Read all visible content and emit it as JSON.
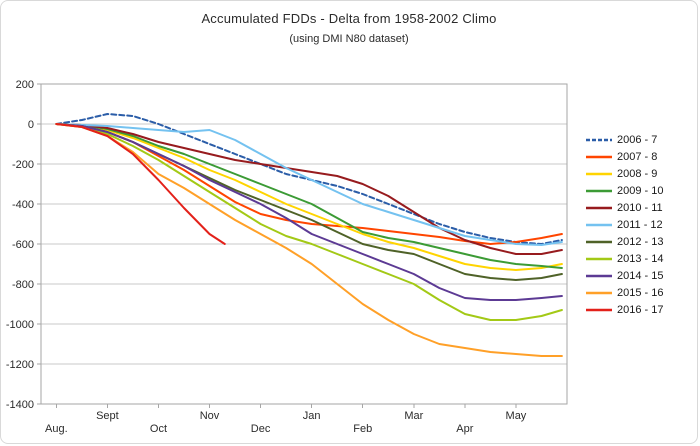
{
  "chart_data": {
    "type": "line",
    "title": "Accumulated FDDs - Delta from 1958-2002 Climo",
    "subtitle": "(using DMI N80 dataset)",
    "xlabel": "",
    "ylabel": "",
    "grid": "horizontal",
    "legend_position": "right",
    "xlim": [
      -0.3,
      10.0
    ],
    "ylim": [
      -1400,
      200
    ],
    "y_ticks": [
      200,
      0,
      -200,
      -400,
      -600,
      -800,
      -1000,
      -1200,
      -1400
    ],
    "x_tick_labels": [
      "Aug.",
      "Sept",
      "Oct",
      "Nov",
      "Dec",
      "Jan",
      "Feb",
      "Mar",
      "Apr",
      "May"
    ],
    "x_tick_positions": [
      0,
      1,
      2,
      3,
      4,
      5,
      6,
      7,
      8,
      9
    ],
    "colors": {
      "grid": "#c9c9c9",
      "plot_border": "#a6a6a6",
      "axis_text": "#2b2b2b"
    },
    "series": [
      {
        "name": "2006 - 7",
        "color": "#2b5da8",
        "dash": true,
        "x": [
          0,
          0.5,
          1,
          1.5,
          2,
          2.5,
          3,
          3.5,
          4,
          4.5,
          5,
          5.5,
          6,
          6.5,
          7,
          7.5,
          8,
          8.5,
          9,
          9.5,
          9.9
        ],
        "y": [
          0,
          20,
          50,
          40,
          0,
          -50,
          -100,
          -150,
          -200,
          -250,
          -280,
          -310,
          -350,
          -400,
          -450,
          -500,
          -540,
          -570,
          -590,
          -600,
          -580
        ]
      },
      {
        "name": "2007 - 8",
        "color": "#ff4500",
        "dash": false,
        "x": [
          0,
          0.5,
          1,
          1.5,
          2,
          2.5,
          3,
          3.5,
          4,
          4.5,
          5,
          5.5,
          6,
          6.5,
          7,
          7.5,
          8,
          8.5,
          9,
          9.5,
          9.9
        ],
        "y": [
          0,
          -10,
          -40,
          -90,
          -160,
          -230,
          -310,
          -390,
          -450,
          -480,
          -500,
          -510,
          -520,
          -535,
          -550,
          -565,
          -585,
          -600,
          -590,
          -570,
          -550
        ]
      },
      {
        "name": "2008 - 9",
        "color": "#ffd400",
        "dash": false,
        "x": [
          0,
          0.5,
          1,
          1.5,
          2,
          2.5,
          3,
          3.5,
          4,
          4.5,
          5,
          5.5,
          6,
          6.5,
          7,
          7.5,
          8,
          8.5,
          9,
          9.5,
          9.9
        ],
        "y": [
          0,
          -10,
          -30,
          -70,
          -120,
          -170,
          -230,
          -280,
          -340,
          -400,
          -450,
          -500,
          -550,
          -590,
          -620,
          -660,
          -700,
          -720,
          -730,
          -720,
          -700
        ]
      },
      {
        "name": "2009 - 10",
        "color": "#3c9b35",
        "dash": false,
        "x": [
          0,
          0.5,
          1,
          1.5,
          2,
          2.5,
          3,
          3.5,
          4,
          4.5,
          5,
          5.5,
          6,
          6.5,
          7,
          7.5,
          8,
          8.5,
          9,
          9.5,
          9.9
        ],
        "y": [
          0,
          -5,
          -25,
          -60,
          -110,
          -150,
          -200,
          -250,
          -300,
          -350,
          -400,
          -470,
          -540,
          -570,
          -590,
          -620,
          -650,
          -680,
          -700,
          -710,
          -720
        ]
      },
      {
        "name": "2010 - 11",
        "color": "#971b1e",
        "dash": false,
        "x": [
          0,
          0.5,
          1,
          1.5,
          2,
          2.5,
          3,
          3.5,
          4,
          4.5,
          5,
          5.5,
          6,
          6.5,
          7,
          7.5,
          8,
          8.5,
          9,
          9.5,
          9.9
        ],
        "y": [
          0,
          -5,
          -20,
          -50,
          -90,
          -120,
          -150,
          -180,
          -200,
          -220,
          -240,
          -260,
          -300,
          -360,
          -440,
          -520,
          -580,
          -620,
          -650,
          -650,
          -630
        ]
      },
      {
        "name": "2011 - 12",
        "color": "#74c2f0",
        "dash": false,
        "x": [
          0,
          0.5,
          1,
          1.5,
          2,
          2.5,
          3,
          3.5,
          4,
          4.5,
          5,
          5.5,
          6,
          6.5,
          7,
          7.5,
          8,
          8.5,
          9,
          9.5,
          9.9
        ],
        "y": [
          0,
          -5,
          -10,
          -20,
          -30,
          -40,
          -30,
          -80,
          -150,
          -220,
          -280,
          -340,
          -400,
          -440,
          -480,
          -520,
          -560,
          -580,
          -600,
          -605,
          -590
        ]
      },
      {
        "name": "2012 - 13",
        "color": "#4f6228",
        "dash": false,
        "x": [
          0,
          0.5,
          1,
          1.5,
          2,
          2.5,
          3,
          3.5,
          4,
          4.5,
          5,
          5.5,
          6,
          6.5,
          7,
          7.5,
          8,
          8.5,
          9,
          9.5,
          9.9
        ],
        "y": [
          0,
          -10,
          -40,
          -90,
          -150,
          -210,
          -270,
          -330,
          -380,
          -430,
          -480,
          -540,
          -600,
          -630,
          -650,
          -700,
          -750,
          -770,
          -780,
          -770,
          -750
        ]
      },
      {
        "name": "2013 - 14",
        "color": "#a3c916",
        "dash": false,
        "x": [
          0,
          0.5,
          1,
          1.5,
          2,
          2.5,
          3,
          3.5,
          4,
          4.5,
          5,
          5.5,
          6,
          6.5,
          7,
          7.5,
          8,
          8.5,
          9,
          9.5,
          9.9
        ],
        "y": [
          0,
          -15,
          -50,
          -110,
          -180,
          -260,
          -340,
          -420,
          -500,
          -560,
          -600,
          -650,
          -700,
          -750,
          -800,
          -880,
          -950,
          -980,
          -980,
          -960,
          -930
        ]
      },
      {
        "name": "2014 - 15",
        "color": "#5c3a94",
        "dash": false,
        "x": [
          0,
          0.5,
          1,
          1.5,
          2,
          2.5,
          3,
          3.5,
          4,
          4.5,
          5,
          5.5,
          6,
          6.5,
          7,
          7.5,
          8,
          8.5,
          9,
          9.5,
          9.9
        ],
        "y": [
          0,
          -10,
          -40,
          -90,
          -150,
          -210,
          -280,
          -340,
          -400,
          -470,
          -550,
          -600,
          -650,
          -700,
          -750,
          -820,
          -870,
          -880,
          -880,
          -870,
          -860
        ]
      },
      {
        "name": "2015 - 16",
        "color": "#ffa028",
        "dash": false,
        "x": [
          0,
          0.5,
          1,
          1.5,
          2,
          2.5,
          3,
          3.5,
          4,
          4.5,
          5,
          5.5,
          6,
          6.5,
          7,
          7.5,
          8,
          8.5,
          9,
          9.5,
          9.9
        ],
        "y": [
          0,
          -15,
          -60,
          -140,
          -250,
          -320,
          -400,
          -480,
          -550,
          -620,
          -700,
          -800,
          -900,
          -980,
          -1050,
          -1100,
          -1120,
          -1140,
          -1150,
          -1160,
          -1160
        ]
      },
      {
        "name": "2016 - 17",
        "color": "#e3211a",
        "dash": false,
        "x": [
          0,
          0.5,
          1,
          1.5,
          2,
          2.5,
          3,
          3.3
        ],
        "y": [
          0,
          -15,
          -60,
          -150,
          -280,
          -420,
          -550,
          -600
        ]
      }
    ]
  }
}
